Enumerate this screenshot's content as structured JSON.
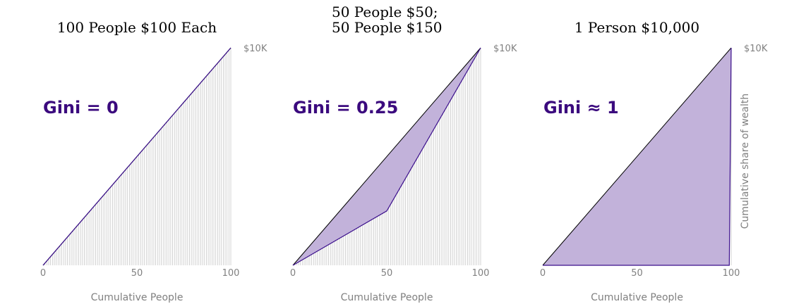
{
  "chart_data": [
    {
      "type": "area",
      "title": "100 People $100 Each",
      "gini_label": "Gini = 0",
      "xlabel": "Cumulative People",
      "ylabel": "",
      "x_ticks": [
        "0",
        "50",
        "100"
      ],
      "y_tick_top": "$10K",
      "xlim": [
        0,
        100
      ],
      "ylim": [
        0,
        10000
      ],
      "people": 100,
      "lorenz_x": [
        0,
        100
      ],
      "lorenz_y": [
        0,
        10000
      ],
      "equality_x": [
        0,
        100
      ],
      "equality_y": [
        0,
        10000
      ]
    },
    {
      "type": "area",
      "title": "50 People $50;\n50 People $150",
      "gini_label": "Gini = 0.25",
      "xlabel": "Cumulative People",
      "ylabel": "",
      "x_ticks": [
        "0",
        "50",
        "100"
      ],
      "y_tick_top": "$10K",
      "xlim": [
        0,
        100
      ],
      "ylim": [
        0,
        10000
      ],
      "people": 100,
      "lorenz_x": [
        0,
        50,
        100
      ],
      "lorenz_y": [
        0,
        2500,
        10000
      ],
      "equality_x": [
        0,
        100
      ],
      "equality_y": [
        0,
        10000
      ]
    },
    {
      "type": "area",
      "title": "1 Person $10,000",
      "gini_label": "Gini ≈ 1",
      "xlabel": "Cumulative People",
      "ylabel": "Cumulative share of wealth",
      "x_ticks": [
        "0",
        "50",
        "100"
      ],
      "y_tick_top": "$10K",
      "xlim": [
        0,
        100
      ],
      "ylim": [
        0,
        10000
      ],
      "people": 100,
      "lorenz_x": [
        0,
        99,
        100
      ],
      "lorenz_y": [
        0,
        0,
        10000
      ],
      "equality_x": [
        0,
        100
      ],
      "equality_y": [
        0,
        10000
      ]
    }
  ],
  "colors": {
    "fill": "#c2b2da",
    "lorenz": "#3b0f8c",
    "equality": "#000000",
    "gini_text": "#3b0a7e",
    "gridline": "#c8c8c8",
    "axis_text": "#808080"
  }
}
